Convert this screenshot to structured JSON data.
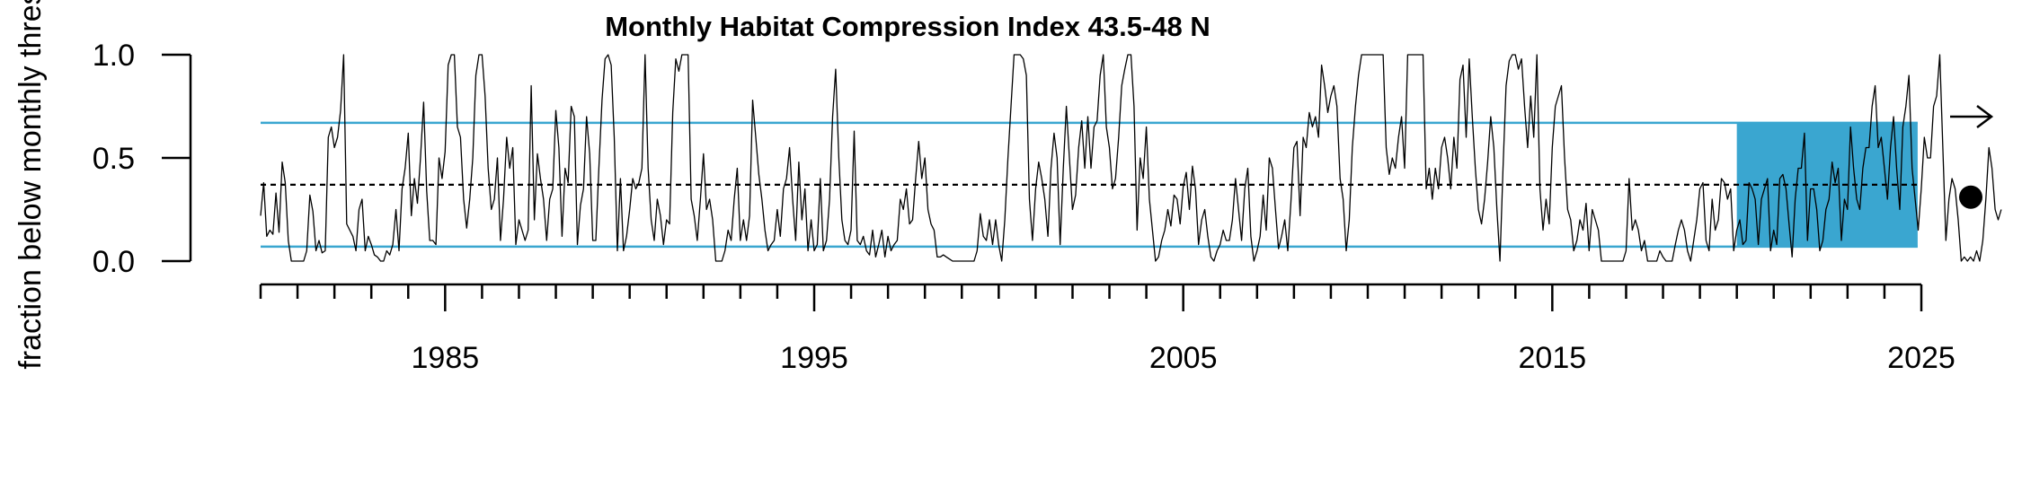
{
  "chart_data": {
    "type": "line",
    "title": "Monthly Habitat Compression Index 43.5-48 N",
    "ylabel": "fraction below monthly thres",
    "xlabel": "",
    "xlim": [
      1980.0,
      2025.0
    ],
    "ylim": [
      0.0,
      1.0
    ],
    "y_ticks": [
      0.0,
      0.5,
      1.0
    ],
    "y_tick_labels": [
      "0.0",
      "0.5",
      "1.0"
    ],
    "x_major_ticks": [
      1985,
      1995,
      2005,
      2015,
      2025
    ],
    "x_tick_labels": [
      "1985",
      "1995",
      "2005",
      "2015",
      "2025"
    ],
    "x_minor_ticks": [
      1980,
      1981,
      1982,
      1983,
      1984,
      1985,
      1986,
      1987,
      1988,
      1989,
      1990,
      1991,
      1992,
      1993,
      1994,
      1995,
      1996,
      1997,
      1998,
      1999,
      2000,
      2001,
      2002,
      2003,
      2004,
      2005,
      2006,
      2007,
      2008,
      2009,
      2010,
      2011,
      2012,
      2013,
      2014,
      2015,
      2016,
      2017,
      2018,
      2019,
      2020,
      2021,
      2022,
      2023,
      2024,
      2025
    ],
    "reference_lines": {
      "mean": 0.37,
      "upper": 0.67,
      "lower": 0.07,
      "colors": {
        "mean": "#000000",
        "bounds": "#3aa6d0"
      }
    },
    "highlight_period": {
      "x_start": 2020.0,
      "x_end": 2024.9,
      "y_low": 0.07,
      "y_high": 0.67,
      "color": "#3aa6d0"
    },
    "indicators": {
      "trend": "arrow-right",
      "status": "filled-dot"
    },
    "series": [
      {
        "x_start": 1980.0,
        "x_step": 0.08333,
        "values": [
          0.22,
          0.38,
          0.12,
          0.15,
          0.13,
          0.33,
          0.14,
          0.48,
          0.38,
          0.1,
          0.0,
          0.0,
          0.0,
          0.0,
          0.0,
          0.05,
          0.32,
          0.24,
          0.05,
          0.1,
          0.04,
          0.05,
          0.6,
          0.65,
          0.55,
          0.6,
          0.73,
          1.0,
          0.18,
          0.15,
          0.12,
          0.05,
          0.25,
          0.3,
          0.05,
          0.12,
          0.08,
          0.03,
          0.02,
          0.0,
          0.0,
          0.05,
          0.03,
          0.08,
          0.25,
          0.05,
          0.35,
          0.45,
          0.62,
          0.22,
          0.4,
          0.28,
          0.5,
          0.77,
          0.34,
          0.1,
          0.1,
          0.08,
          0.5,
          0.4,
          0.53,
          0.95,
          1.0,
          1.0,
          0.65,
          0.6,
          0.3,
          0.16,
          0.3,
          0.5,
          0.9,
          1.0,
          1.0,
          0.8,
          0.45,
          0.25,
          0.3,
          0.5,
          0.1,
          0.3,
          0.6,
          0.45,
          0.55,
          0.08,
          0.2,
          0.15,
          0.1,
          0.15,
          0.85,
          0.2,
          0.52,
          0.4,
          0.3,
          0.1,
          0.3,
          0.35,
          0.73,
          0.55,
          0.12,
          0.45,
          0.38,
          0.75,
          0.7,
          0.08,
          0.27,
          0.35,
          0.7,
          0.52,
          0.1,
          0.1,
          0.45,
          0.78,
          0.98,
          1.0,
          0.95,
          0.6,
          0.05,
          0.4,
          0.05,
          0.12,
          0.25,
          0.4,
          0.35,
          0.38,
          0.45,
          1.0,
          0.45,
          0.2,
          0.1,
          0.3,
          0.22,
          0.08,
          0.2,
          0.18,
          0.72,
          0.98,
          0.92,
          1.0,
          1.0,
          1.0,
          0.3,
          0.22,
          0.1,
          0.3,
          0.52,
          0.25,
          0.3,
          0.2,
          0.0,
          0.0,
          0.0,
          0.05,
          0.15,
          0.1,
          0.3,
          0.45,
          0.1,
          0.2,
          0.1,
          0.22,
          0.78,
          0.6,
          0.42,
          0.3,
          0.15,
          0.05,
          0.08,
          0.1,
          0.25,
          0.12,
          0.35,
          0.4,
          0.55,
          0.3,
          0.1,
          0.48,
          0.2,
          0.35,
          0.05,
          0.2,
          0.05,
          0.08,
          0.4,
          0.05,
          0.1,
          0.3,
          0.7,
          0.93,
          0.5,
          0.2,
          0.1,
          0.08,
          0.15,
          0.63,
          0.1,
          0.08,
          0.12,
          0.05,
          0.03,
          0.15,
          0.02,
          0.08,
          0.15,
          0.02,
          0.12,
          0.05,
          0.08,
          0.1,
          0.3,
          0.25,
          0.35,
          0.18,
          0.2,
          0.4,
          0.58,
          0.4,
          0.5,
          0.25,
          0.18,
          0.15,
          0.02,
          0.02,
          0.03,
          0.02,
          0.01,
          0.0,
          0.0,
          0.0,
          0.0,
          0.0,
          0.0,
          0.0,
          0.0,
          0.05,
          0.23,
          0.12,
          0.1,
          0.2,
          0.08,
          0.2,
          0.08,
          0.0,
          0.2,
          0.5,
          0.75,
          1.0,
          1.0,
          1.0,
          0.98,
          0.9,
          0.3,
          0.1,
          0.35,
          0.48,
          0.4,
          0.3,
          0.12,
          0.45,
          0.62,
          0.5,
          0.08,
          0.45,
          0.75,
          0.5,
          0.25,
          0.32,
          0.55,
          0.68,
          0.45,
          0.7,
          0.45,
          0.65,
          0.68,
          0.9,
          1.0,
          0.65,
          0.55,
          0.35,
          0.4,
          0.6,
          0.85,
          0.93,
          1.0,
          1.0,
          0.75,
          0.15,
          0.5,
          0.4,
          0.65,
          0.3,
          0.15,
          0.0,
          0.02,
          0.1,
          0.15,
          0.25,
          0.17,
          0.32,
          0.3,
          0.18,
          0.36,
          0.43,
          0.25,
          0.46,
          0.35,
          0.08,
          0.2,
          0.25,
          0.12,
          0.02,
          0.0,
          0.05,
          0.08,
          0.15,
          0.1,
          0.1,
          0.2,
          0.4,
          0.25,
          0.1,
          0.35,
          0.45,
          0.12,
          0.0,
          0.05,
          0.12,
          0.32,
          0.15,
          0.5,
          0.45,
          0.25,
          0.06,
          0.12,
          0.2,
          0.05,
          0.28,
          0.55,
          0.58,
          0.22,
          0.6,
          0.55,
          0.72,
          0.65,
          0.7,
          0.6,
          0.95,
          0.85,
          0.72,
          0.8,
          0.85,
          0.75,
          0.4,
          0.3,
          0.05,
          0.2,
          0.55,
          0.75,
          0.9,
          1.0,
          1.0,
          1.0,
          1.0,
          1.0,
          1.0,
          1.0,
          1.0,
          0.55,
          0.42,
          0.5,
          0.45,
          0.6,
          0.7,
          0.45,
          1.0,
          1.0,
          1.0,
          1.0,
          1.0,
          1.0,
          0.35,
          0.45,
          0.3,
          0.45,
          0.35,
          0.55,
          0.6,
          0.5,
          0.35,
          0.6,
          0.45,
          0.88,
          0.95,
          0.6,
          0.98,
          0.7,
          0.45,
          0.25,
          0.18,
          0.3,
          0.48,
          0.7,
          0.55,
          0.25,
          0.0,
          0.45,
          0.85,
          0.97,
          1.0,
          1.0,
          0.93,
          0.98,
          0.75,
          0.55,
          0.8,
          0.6,
          1.0,
          0.35,
          0.15,
          0.3,
          0.18,
          0.55,
          0.75,
          0.8,
          0.85,
          0.5,
          0.25,
          0.2,
          0.05,
          0.1,
          0.2,
          0.15,
          0.28,
          0.05,
          0.25,
          0.2,
          0.15,
          0.0,
          0.0,
          0.0,
          0.0,
          0.0,
          0.0,
          0.0,
          0.0,
          0.05,
          0.4,
          0.15,
          0.2,
          0.15,
          0.05,
          0.1,
          0.0,
          0.0,
          0.0,
          0.0,
          0.05,
          0.02,
          0.0,
          0.0,
          0.0,
          0.08,
          0.15,
          0.2,
          0.15,
          0.05,
          0.0,
          0.1,
          0.2,
          0.35,
          0.38,
          0.1,
          0.05,
          0.3,
          0.15,
          0.2,
          0.4,
          0.38,
          0.3,
          0.35,
          0.05,
          0.15,
          0.2,
          0.08,
          0.1,
          0.38,
          0.35,
          0.3,
          0.08,
          0.3,
          0.35,
          0.4,
          0.05,
          0.15,
          0.08,
          0.4,
          0.42,
          0.35,
          0.18,
          0.02,
          0.3,
          0.45,
          0.45,
          0.62,
          0.1,
          0.35,
          0.35,
          0.25,
          0.05,
          0.1,
          0.25,
          0.3,
          0.48,
          0.38,
          0.45,
          0.1,
          0.3,
          0.25,
          0.65,
          0.45,
          0.3,
          0.25,
          0.45,
          0.55,
          0.55,
          0.75,
          0.85,
          0.55,
          0.6,
          0.45,
          0.3,
          0.55,
          0.7,
          0.45,
          0.25,
          0.65,
          0.75,
          0.9,
          0.45,
          0.3,
          0.15,
          0.35,
          0.6,
          0.5,
          0.5,
          0.75,
          0.8,
          1.0,
          0.55,
          0.1,
          0.3,
          0.4,
          0.35,
          0.2,
          0.0,
          0.02,
          0.0,
          0.02,
          0.0,
          0.05,
          0.0,
          0.1,
          0.3,
          0.55,
          0.45,
          0.25,
          0.2,
          0.25
        ]
      }
    ]
  }
}
